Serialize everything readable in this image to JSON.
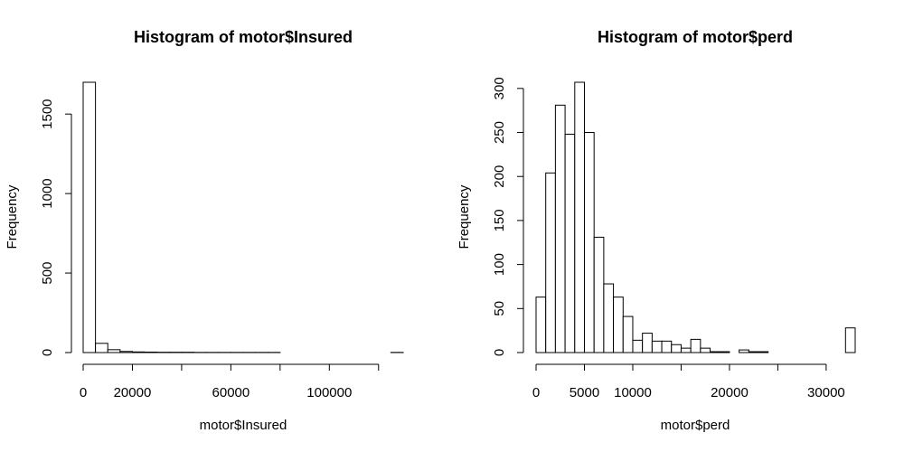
{
  "chart_data": [
    {
      "type": "bar",
      "title": "Histogram of motor$Insured",
      "xlabel": "motor$Insured",
      "ylabel": "Frequency",
      "bin_width": 5000,
      "bin_start": 0,
      "values": [
        1700,
        58,
        18,
        7,
        4,
        3,
        2,
        2,
        2,
        1,
        1,
        1,
        1,
        1,
        1,
        1,
        0,
        0,
        0,
        0,
        0,
        0,
        0,
        0,
        0,
        1
      ],
      "xticks": [
        0,
        20000,
        60000,
        100000
      ],
      "xaxis_range": [
        0,
        120000
      ],
      "xaxis_major": [
        0,
        20000,
        40000,
        60000,
        80000,
        100000,
        120000
      ],
      "yticks": [
        0,
        500,
        1000,
        1500
      ],
      "xlim": [
        0,
        130000
      ],
      "ylim": [
        0,
        1700
      ],
      "grid": false
    },
    {
      "type": "bar",
      "title": "Histogram of motor$perd",
      "xlabel": "motor$perd",
      "ylabel": "Frequency",
      "bin_width": 1000,
      "bin_start": 0,
      "values": [
        63,
        204,
        281,
        248,
        307,
        250,
        131,
        78,
        63,
        41,
        14,
        22,
        13,
        13,
        9,
        5,
        15,
        5,
        1,
        1,
        0,
        3,
        1,
        1,
        0,
        0,
        0,
        0,
        0,
        0,
        0,
        0,
        28
      ],
      "xticks": [
        0,
        5000,
        10000,
        20000,
        30000
      ],
      "xaxis_range": [
        0,
        30000
      ],
      "xaxis_major": [
        0,
        5000,
        10000,
        15000,
        20000,
        25000,
        30000
      ],
      "yticks": [
        0,
        50,
        100,
        150,
        200,
        250,
        300
      ],
      "xlim": [
        0,
        33000
      ],
      "ylim": [
        0,
        307
      ],
      "grid": false
    }
  ]
}
